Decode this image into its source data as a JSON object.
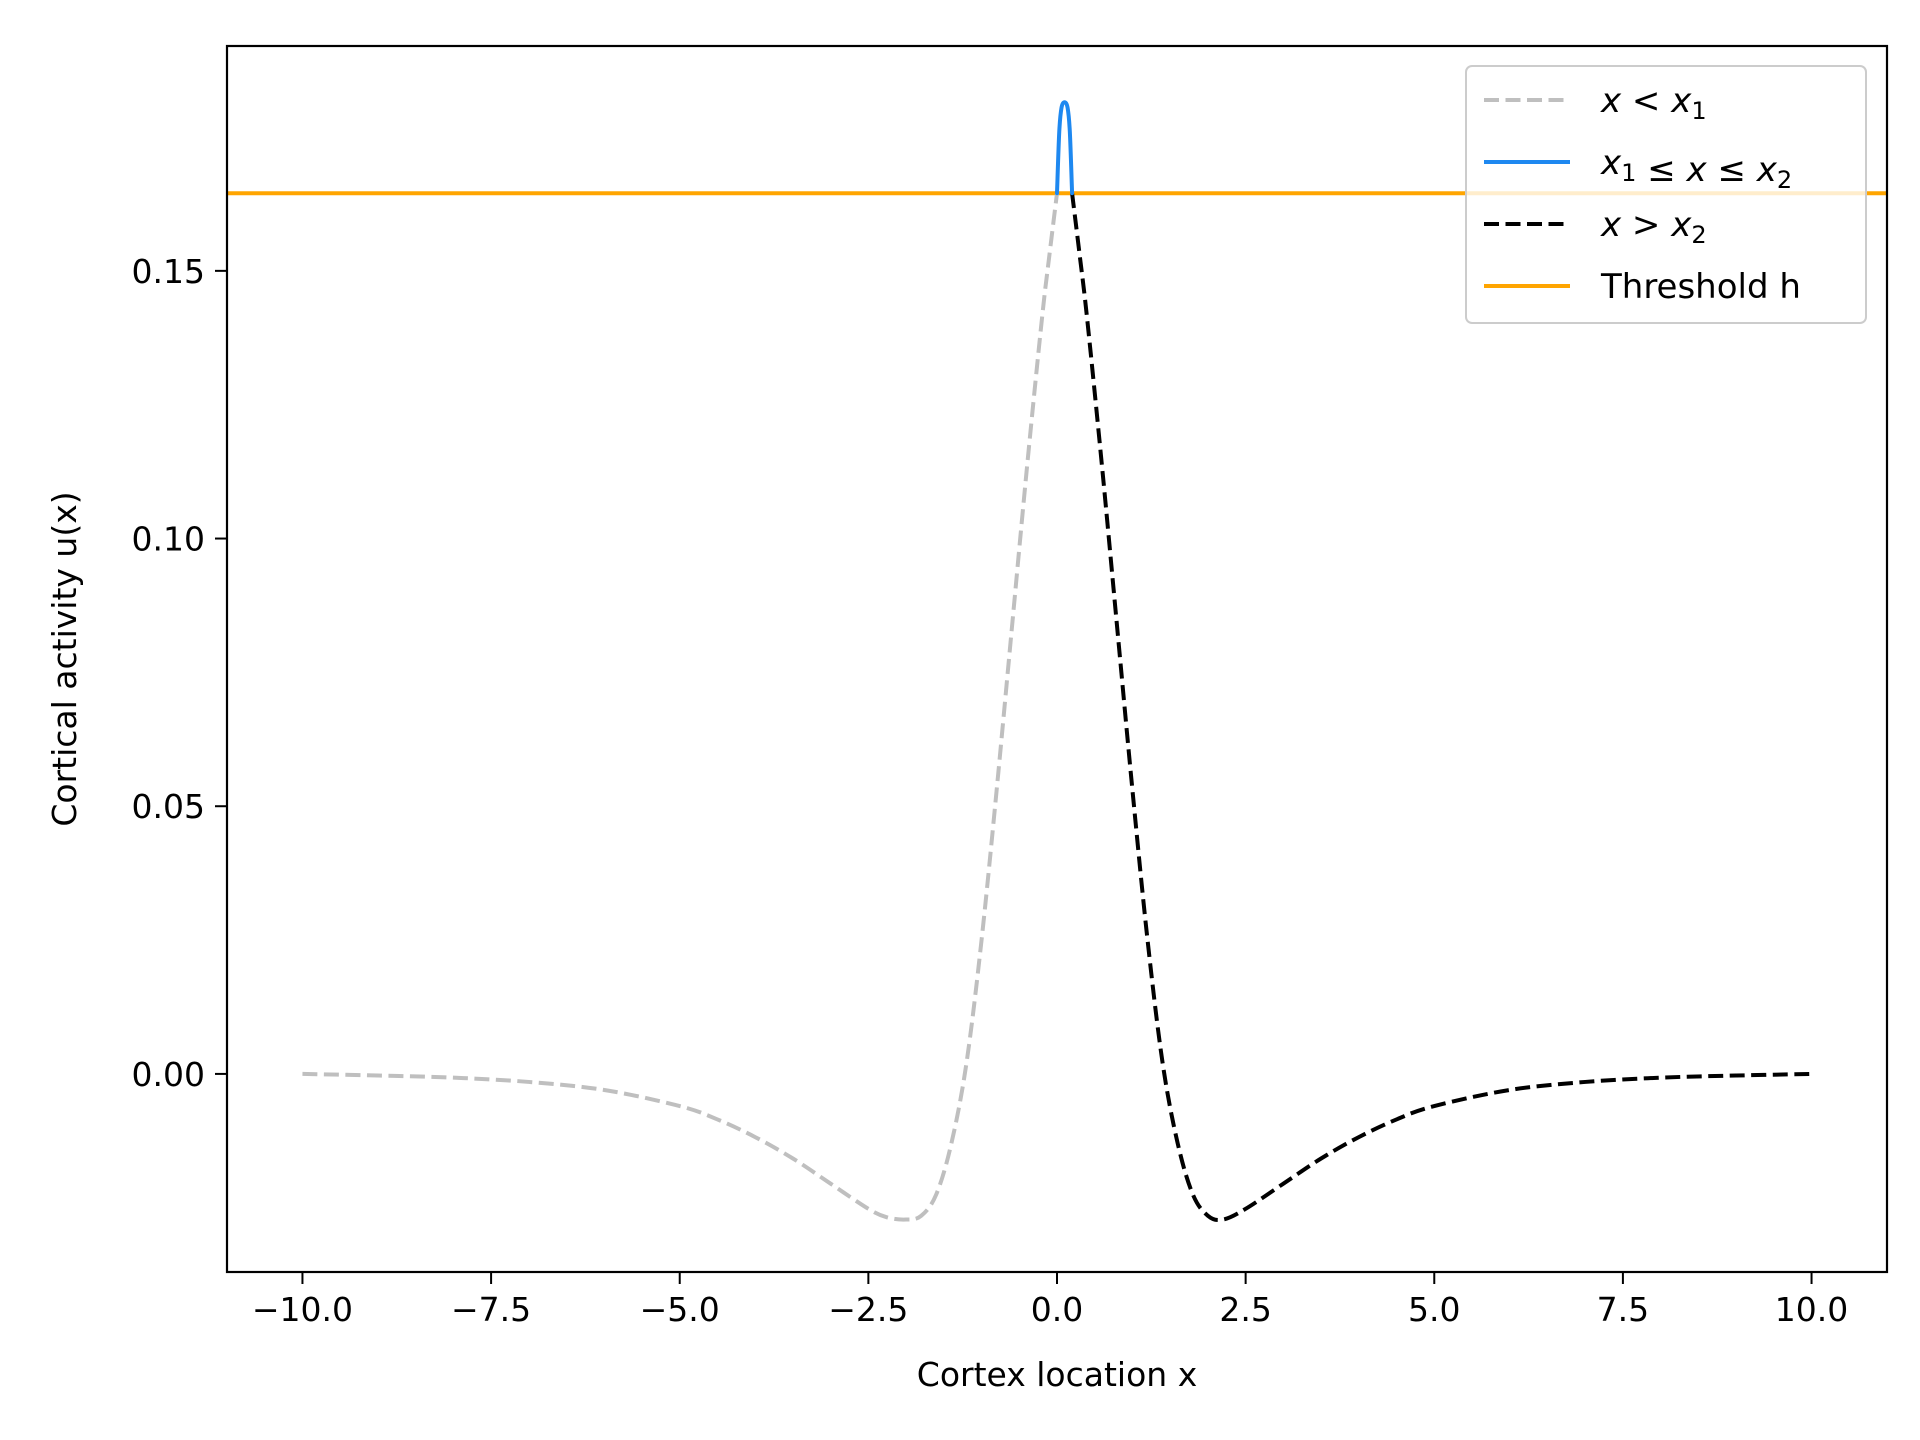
{
  "chart_data": {
    "type": "line",
    "title": "",
    "xlabel": "Cortex location x",
    "ylabel": "Cortical activity u(x)",
    "xlim": [
      -11.0,
      11.0
    ],
    "ylim": [
      -0.037,
      0.192
    ],
    "xticks": [
      -10.0,
      -7.5,
      -5.0,
      -2.5,
      0.0,
      2.5,
      5.0,
      7.5,
      10.0
    ],
    "xtick_labels": [
      "−10.0",
      "−7.5",
      "−5.0",
      "−2.5",
      "0.0",
      "2.5",
      "5.0",
      "7.5",
      "10.0"
    ],
    "yticks": [
      0.0,
      0.05,
      0.1,
      0.15
    ],
    "ytick_labels": [
      "0.00",
      "0.05",
      "0.10",
      "0.15"
    ],
    "grid": false,
    "legend_position": "top-right",
    "threshold": 0.1645,
    "x1": 0.0,
    "x2": 0.2,
    "series": [
      {
        "name": "x < x1",
        "legend_parts": [
          [
            "x",
            "i"
          ],
          [
            " < ",
            "n"
          ],
          [
            "x",
            "i"
          ],
          [
            "1",
            "sub"
          ]
        ],
        "color": "#bfbfbf",
        "style": "dashed",
        "x": [
          -10.0,
          -9.0,
          -8.0,
          -7.0,
          -6.0,
          -5.0,
          -4.5,
          -4.0,
          -3.5,
          -3.0,
          -2.5,
          -2.25,
          -2.0,
          -1.8,
          -1.6,
          -1.4,
          -1.2,
          -1.0,
          -0.8,
          -0.6,
          -0.4,
          -0.2,
          -0.1,
          0.0
        ],
        "y": [
          0.0,
          -0.0003,
          -0.0007,
          -0.0015,
          -0.003,
          -0.006,
          -0.0085,
          -0.0118,
          -0.0158,
          -0.0205,
          -0.0252,
          -0.0268,
          -0.0272,
          -0.0265,
          -0.0225,
          -0.013,
          0.002,
          0.025,
          0.053,
          0.083,
          0.113,
          0.141,
          0.153,
          0.1645
        ]
      },
      {
        "name": "x1 ≤ x ≤ x2",
        "legend_parts": [
          [
            "x",
            "i"
          ],
          [
            "1",
            "sub"
          ],
          [
            " ≤ ",
            "n"
          ],
          [
            "x",
            "i"
          ],
          [
            " ≤ ",
            "n"
          ],
          [
            "x",
            "i"
          ],
          [
            "2",
            "sub"
          ]
        ],
        "color": "#1e88f0",
        "style": "solid",
        "x": [
          0.0,
          0.03,
          0.06,
          0.1,
          0.14,
          0.17,
          0.2
        ],
        "y": [
          0.1645,
          0.176,
          0.1805,
          0.1815,
          0.1805,
          0.176,
          0.1645
        ]
      },
      {
        "name": "x > x2",
        "legend_parts": [
          [
            "x",
            "i"
          ],
          [
            " > ",
            "n"
          ],
          [
            "x",
            "i"
          ],
          [
            "2",
            "sub"
          ]
        ],
        "color": "#000000",
        "style": "dashed",
        "x": [
          0.2,
          0.3,
          0.4,
          0.6,
          0.8,
          1.0,
          1.2,
          1.4,
          1.6,
          1.8,
          2.0,
          2.2,
          2.5,
          3.0,
          3.5,
          4.0,
          4.5,
          5.0,
          6.0,
          7.0,
          8.0,
          9.0,
          10.0
        ],
        "y": [
          0.1645,
          0.153,
          0.141,
          0.113,
          0.083,
          0.053,
          0.025,
          0.002,
          -0.013,
          -0.0225,
          -0.0265,
          -0.0272,
          -0.0252,
          -0.0205,
          -0.0158,
          -0.0118,
          -0.0085,
          -0.006,
          -0.003,
          -0.0015,
          -0.0007,
          -0.0003,
          0.0
        ]
      },
      {
        "name": "Threshold h",
        "legend_parts": [
          [
            "Threshold h",
            "n"
          ]
        ],
        "color": "#ffa500",
        "style": "solid",
        "x": [
          -11.0,
          11.0
        ],
        "y": [
          0.1645,
          0.1645
        ]
      }
    ]
  }
}
